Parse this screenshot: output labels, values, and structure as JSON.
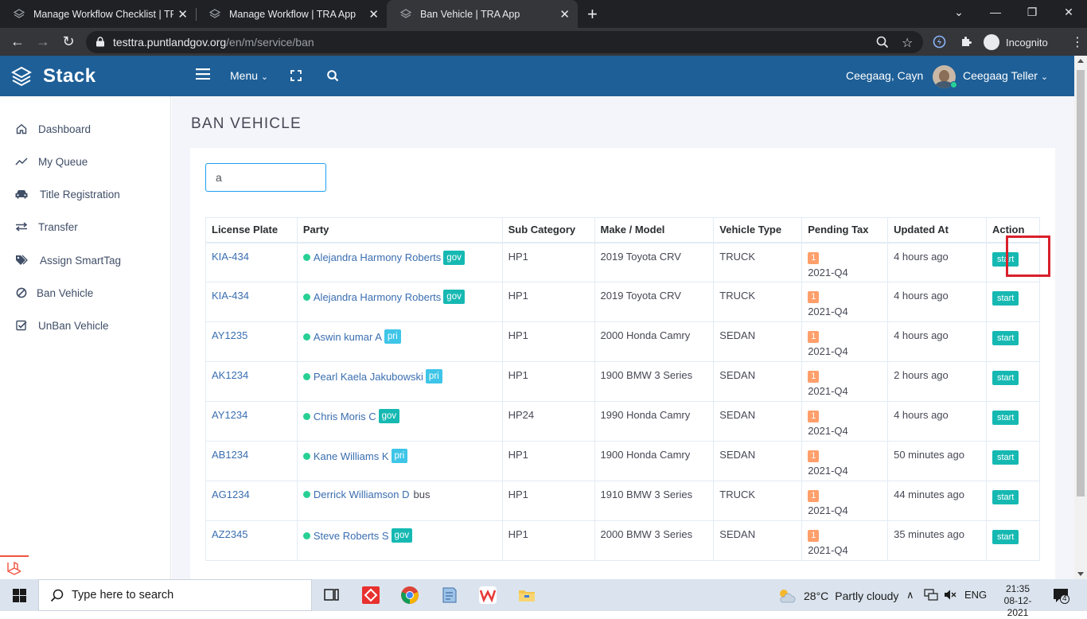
{
  "browser": {
    "tabs": [
      {
        "title": "Manage Workflow Checklist | TRA"
      },
      {
        "title": "Manage Workflow | TRA App"
      },
      {
        "title": "Ban Vehicle | TRA App"
      }
    ],
    "url_host": "testtra.puntlandgov.org",
    "url_path": "/en/m/service/ban",
    "incognito_label": "Incognito"
  },
  "header": {
    "brand": "Stack",
    "menu_label": "Menu",
    "user_name": "Ceegaag, Cayn",
    "user_role": "Ceegaag Teller"
  },
  "sidebar": {
    "items": [
      {
        "label": "Dashboard",
        "icon": "home-icon"
      },
      {
        "label": "My Queue",
        "icon": "trend-icon"
      },
      {
        "label": "Title Registration",
        "icon": "car-icon"
      },
      {
        "label": "Transfer",
        "icon": "transfer-icon"
      },
      {
        "label": "Assign SmartTag",
        "icon": "tags-icon"
      },
      {
        "label": "Ban Vehicle",
        "icon": "ban-icon"
      },
      {
        "label": "UnBan Vehicle",
        "icon": "check-square-icon"
      }
    ]
  },
  "main": {
    "page_title": "BAN VEHICLE",
    "filter_value": "a",
    "columns": [
      "License Plate",
      "Party",
      "Sub Category",
      "Make / Model",
      "Vehicle Type",
      "Pending Tax",
      "Updated At",
      "Action"
    ],
    "rows": [
      {
        "plate": "KIA-434",
        "party": "Alejandra Harmony Roberts",
        "party_type": "gov",
        "sub": "HP1",
        "model": "2019 Toyota CRV",
        "vtype": "TRUCK",
        "pending": "1",
        "quarter": "2021-Q4",
        "updated": "4 hours ago",
        "action": "start"
      },
      {
        "plate": "KIA-434",
        "party": "Alejandra Harmony Roberts",
        "party_type": "gov",
        "sub": "HP1",
        "model": "2019 Toyota CRV",
        "vtype": "TRUCK",
        "pending": "1",
        "quarter": "2021-Q4",
        "updated": "4 hours ago",
        "action": "start"
      },
      {
        "plate": "AY1235",
        "party": "Aswin kumar A",
        "party_type": "pri",
        "sub": "HP1",
        "model": "2000 Honda Camry",
        "vtype": "SEDAN",
        "pending": "1",
        "quarter": "2021-Q4",
        "updated": "4 hours ago",
        "action": "start"
      },
      {
        "plate": "AK1234",
        "party": "Pearl Kaela Jakubowski",
        "party_type": "pri",
        "sub": "HP1",
        "model": "1900 BMW 3 Series",
        "vtype": "SEDAN",
        "pending": "1",
        "quarter": "2021-Q4",
        "updated": "2 hours ago",
        "action": "start"
      },
      {
        "plate": "AY1234",
        "party": "Chris Moris C",
        "party_type": "gov",
        "sub": "HP24",
        "model": "1990 Honda Camry",
        "vtype": "SEDAN",
        "pending": "1",
        "quarter": "2021-Q4",
        "updated": "4 hours ago",
        "action": "start"
      },
      {
        "plate": "AB1234",
        "party": "Kane Williams K",
        "party_type": "pri",
        "sub": "HP1",
        "model": "1900 Honda Camry",
        "vtype": "SEDAN",
        "pending": "1",
        "quarter": "2021-Q4",
        "updated": "50 minutes ago",
        "action": "start"
      },
      {
        "plate": "AG1234",
        "party": "Derrick Williamson D",
        "party_type": "bus",
        "sub": "HP1",
        "model": "1910 BMW 3 Series",
        "vtype": "TRUCK",
        "pending": "1",
        "quarter": "2021-Q4",
        "updated": "44 minutes ago",
        "action": "start"
      },
      {
        "plate": "AZ2345",
        "party": "Steve Roberts S",
        "party_type": "gov",
        "sub": "HP1",
        "model": "2000 BMW 3 Series",
        "vtype": "SEDAN",
        "pending": "1",
        "quarter": "2021-Q4",
        "updated": "35 minutes ago",
        "action": "start"
      }
    ]
  },
  "taskbar": {
    "search_placeholder": "Type here to search",
    "weather_temp": "28°C",
    "weather_text": "Partly cloudy",
    "lang": "ENG",
    "time": "21:35",
    "date": "08-12-2021",
    "notif_count": "4"
  },
  "colors": {
    "header": "#1e5f97",
    "accent_teal": "#16b9b2",
    "pri_badge": "#3ec5e8",
    "pending_badge": "#ff9f6b",
    "highlight": "#d9202b"
  }
}
